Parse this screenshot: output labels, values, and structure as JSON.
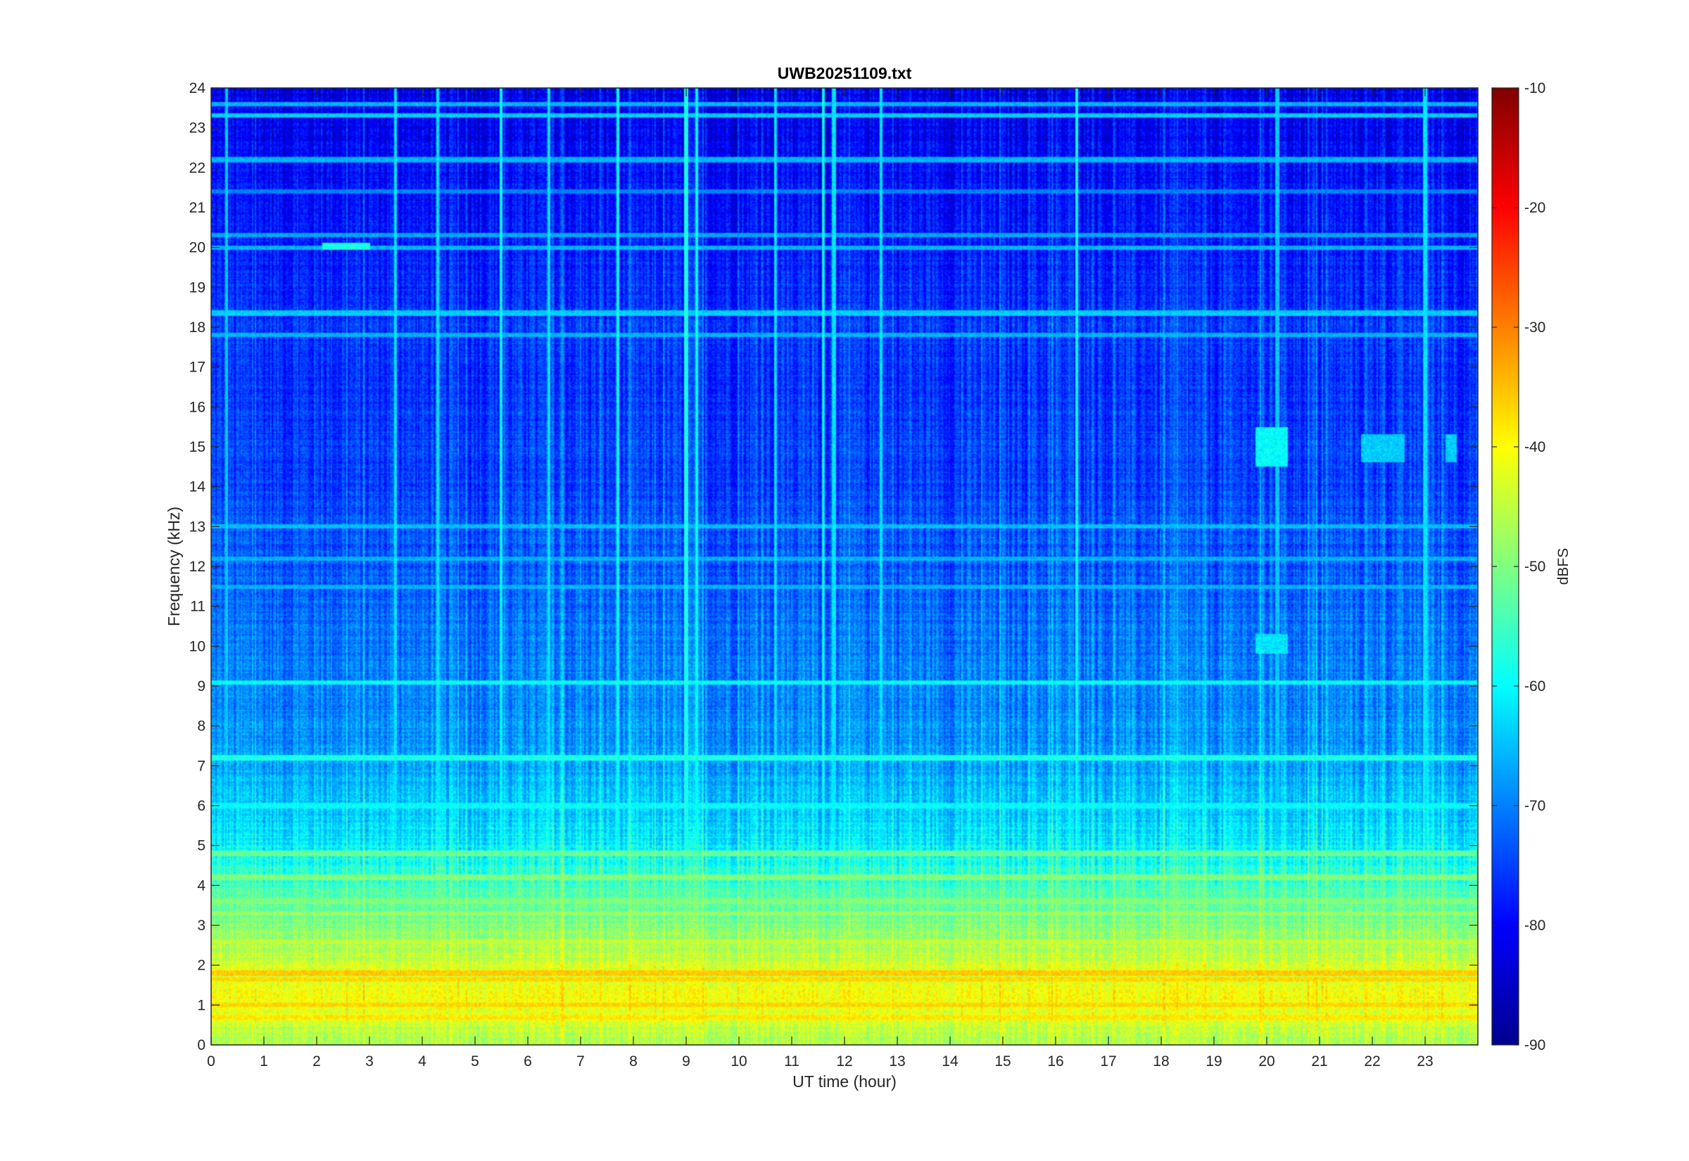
{
  "chart_data": {
    "type": "heatmap",
    "title": "UWB20251109.txt",
    "xlabel": "UT time (hour)",
    "ylabel": "Frequency (kHz)",
    "colorbar_label": "dBFS",
    "xlim": [
      0,
      24
    ],
    "ylim": [
      0,
      24
    ],
    "clim": [
      -90,
      -10
    ],
    "colormap": "jet",
    "x_ticks": [
      0,
      1,
      2,
      3,
      4,
      5,
      6,
      7,
      8,
      9,
      10,
      11,
      12,
      13,
      14,
      15,
      16,
      17,
      18,
      19,
      20,
      21,
      22,
      23
    ],
    "y_ticks": [
      0,
      1,
      2,
      3,
      4,
      5,
      6,
      7,
      8,
      9,
      10,
      11,
      12,
      13,
      14,
      15,
      16,
      17,
      18,
      19,
      20,
      21,
      22,
      23,
      24
    ],
    "colorbar_ticks": [
      -90,
      -80,
      -70,
      -60,
      -50,
      -40,
      -30,
      -20,
      -10
    ],
    "frequency_profile": {
      "frequency_khz": [
        0,
        0.5,
        1,
        1.5,
        2,
        2.5,
        3,
        4,
        5,
        6,
        7,
        8,
        9,
        10,
        12,
        14,
        16,
        18,
        20,
        22,
        24
      ],
      "level_dbfs": [
        -47,
        -44,
        -41,
        -42,
        -44,
        -47,
        -50,
        -55,
        -61,
        -65,
        -67,
        -69,
        -70,
        -71,
        -73,
        -75,
        -76,
        -76,
        -78,
        -80,
        -82
      ]
    },
    "horizontal_lines": [
      {
        "frequency_khz": 0.7,
        "level_dbfs": -38
      },
      {
        "frequency_khz": 1.0,
        "level_dbfs": -37
      },
      {
        "frequency_khz": 1.65,
        "level_dbfs": -37
      },
      {
        "frequency_khz": 1.8,
        "level_dbfs": -36
      },
      {
        "frequency_khz": 2.6,
        "level_dbfs": -45
      },
      {
        "frequency_khz": 3.3,
        "level_dbfs": -48
      },
      {
        "frequency_khz": 3.6,
        "level_dbfs": -50
      },
      {
        "frequency_khz": 4.2,
        "level_dbfs": -50
      },
      {
        "frequency_khz": 4.8,
        "level_dbfs": -52
      },
      {
        "frequency_khz": 6.0,
        "level_dbfs": -60
      },
      {
        "frequency_khz": 7.2,
        "level_dbfs": -58
      },
      {
        "frequency_khz": 9.1,
        "level_dbfs": -60
      },
      {
        "frequency_khz": 11.5,
        "level_dbfs": -66
      },
      {
        "frequency_khz": 12.2,
        "level_dbfs": -66
      },
      {
        "frequency_khz": 13.0,
        "level_dbfs": -65
      },
      {
        "frequency_khz": 17.8,
        "level_dbfs": -66
      },
      {
        "frequency_khz": 18.35,
        "level_dbfs": -64
      },
      {
        "frequency_khz": 20.0,
        "level_dbfs": -66
      },
      {
        "frequency_khz": 20.3,
        "level_dbfs": -67
      },
      {
        "frequency_khz": 21.4,
        "level_dbfs": -70
      },
      {
        "frequency_khz": 22.2,
        "level_dbfs": -66
      },
      {
        "frequency_khz": 23.3,
        "level_dbfs": -64
      },
      {
        "frequency_khz": 23.6,
        "level_dbfs": -66
      }
    ],
    "vertical_lines": [
      {
        "time_hour": 0.3,
        "level_dbfs": -64
      },
      {
        "time_hour": 3.5,
        "level_dbfs": -62
      },
      {
        "time_hour": 4.3,
        "level_dbfs": -62
      },
      {
        "time_hour": 5.5,
        "level_dbfs": -60
      },
      {
        "time_hour": 6.4,
        "level_dbfs": -62
      },
      {
        "time_hour": 7.7,
        "level_dbfs": -60
      },
      {
        "time_hour": 9.0,
        "level_dbfs": -58
      },
      {
        "time_hour": 9.2,
        "level_dbfs": -60
      },
      {
        "time_hour": 10.7,
        "level_dbfs": -62
      },
      {
        "time_hour": 11.6,
        "level_dbfs": -60
      },
      {
        "time_hour": 11.8,
        "level_dbfs": -62
      },
      {
        "time_hour": 12.7,
        "level_dbfs": -62
      },
      {
        "time_hour": 16.4,
        "level_dbfs": -60
      },
      {
        "time_hour": 20.2,
        "level_dbfs": -64
      },
      {
        "time_hour": 23.0,
        "level_dbfs": -62
      }
    ],
    "patches": [
      {
        "time_hour_range": [
          19.8,
          20.4
        ],
        "frequency_khz_range": [
          14.5,
          15.5
        ],
        "level_dbfs": -60
      },
      {
        "time_hour_range": [
          19.8,
          20.4
        ],
        "frequency_khz_range": [
          9.8,
          10.3
        ],
        "level_dbfs": -62
      },
      {
        "time_hour_range": [
          21.8,
          22.6
        ],
        "frequency_khz_range": [
          14.6,
          15.3
        ],
        "level_dbfs": -64
      },
      {
        "time_hour_range": [
          23.4,
          23.6
        ],
        "frequency_khz_range": [
          14.6,
          15.3
        ],
        "level_dbfs": -64
      },
      {
        "time_hour_range": [
          2.1,
          3.0
        ],
        "frequency_khz_range": [
          19.95,
          20.1
        ],
        "level_dbfs": -58
      }
    ]
  }
}
